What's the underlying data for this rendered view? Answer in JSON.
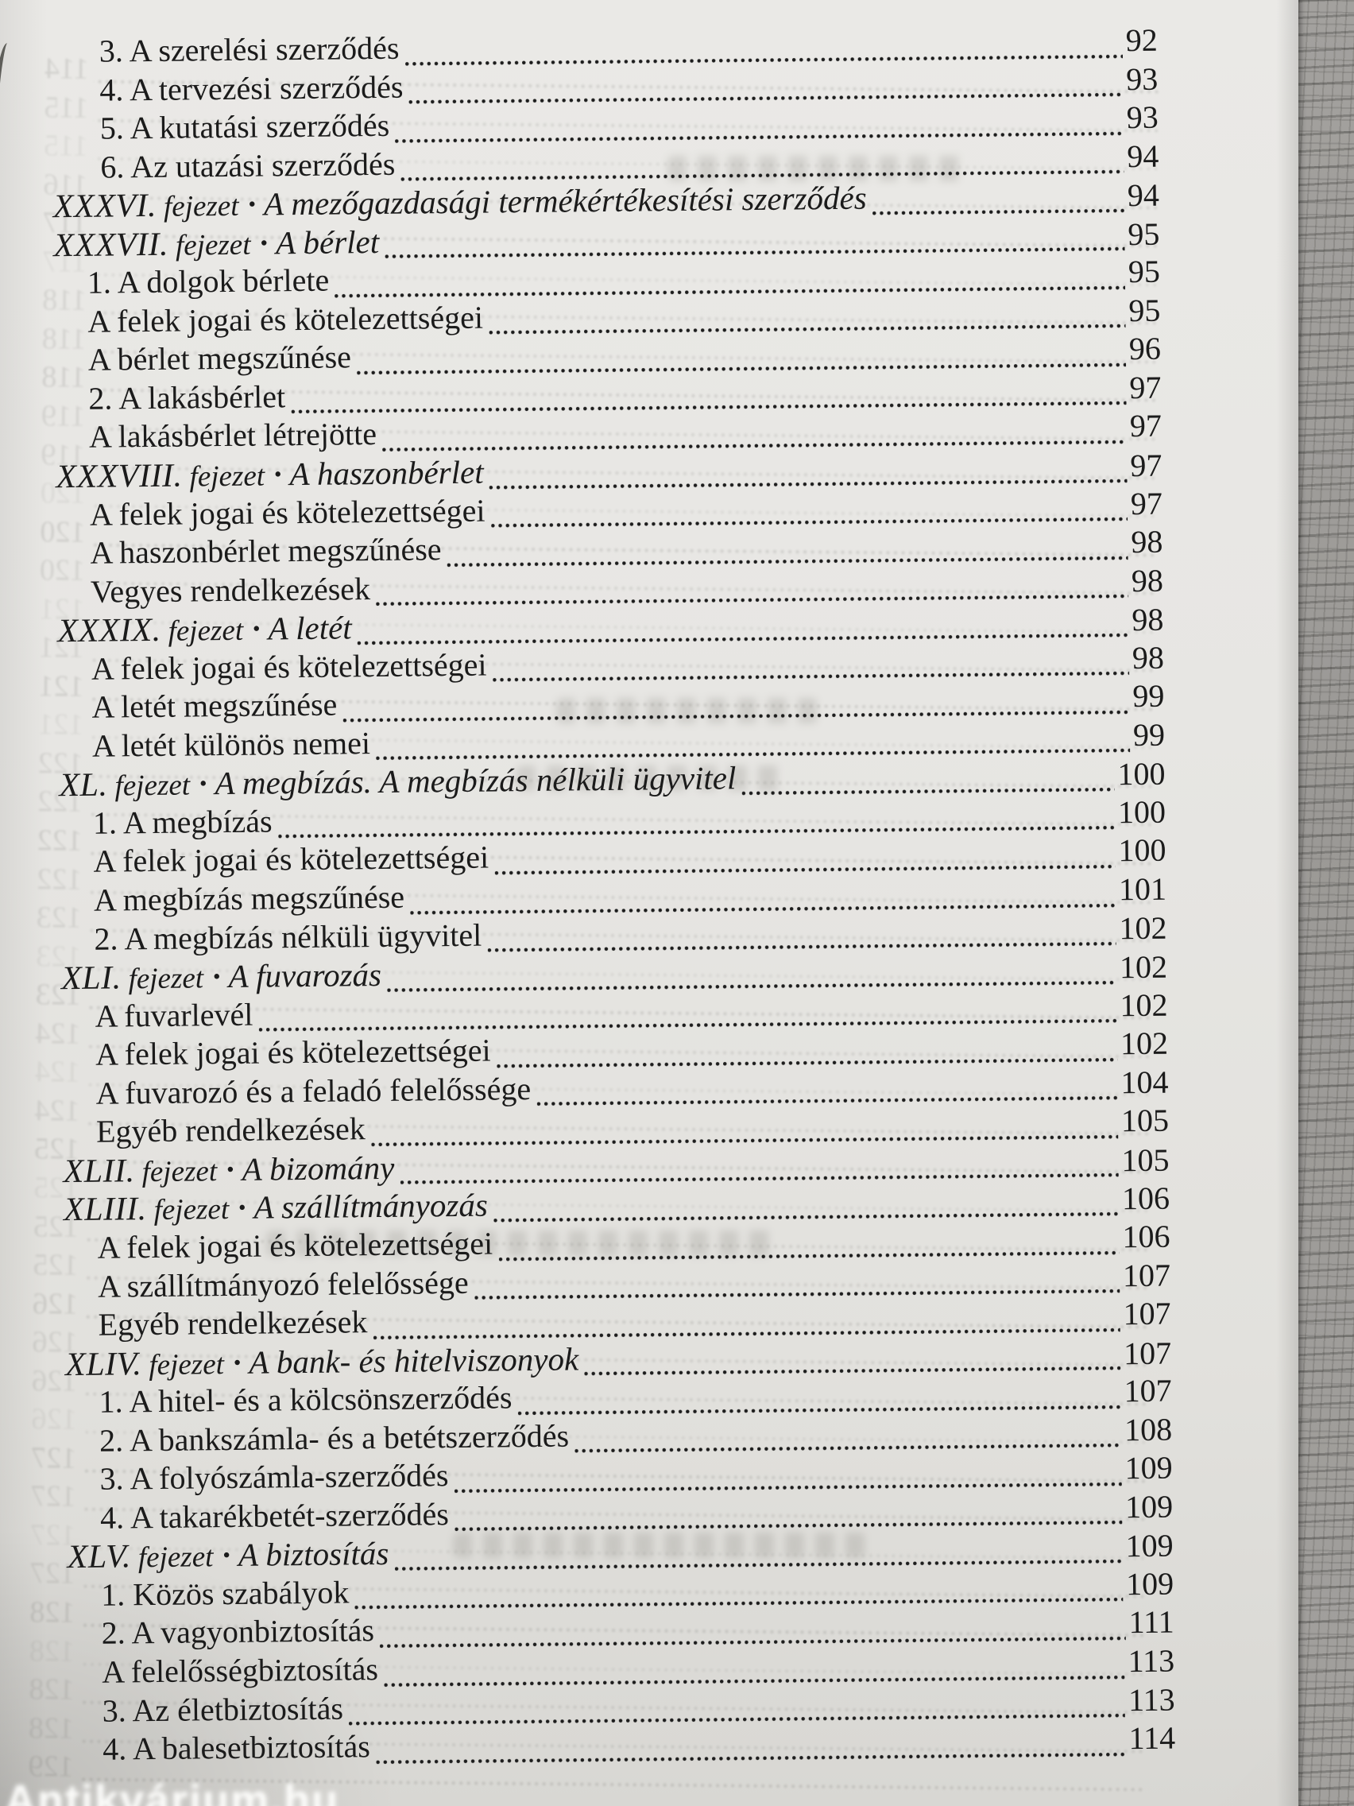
{
  "page": {
    "kind": "scanned book table of contents (Hungarian law book)",
    "watermark": "Antikvárium.hu"
  },
  "toc": {
    "chapter_word": "fejezet",
    "bullet": "•",
    "rows": [
      {
        "level": "point",
        "text": "3. A szerelési szerződés",
        "page": "92"
      },
      {
        "level": "point",
        "text": "4. A tervezési szerződés",
        "page": "93"
      },
      {
        "level": "point",
        "text": "5. A kutatási szerződés",
        "page": "93"
      },
      {
        "level": "point",
        "text": "6. Az utazási szerződés",
        "page": "94"
      },
      {
        "level": "chapter",
        "roman": "XXXVI.",
        "title": "A mezőgazdasági termékértékesítési szerződés",
        "page": "94"
      },
      {
        "level": "chapter",
        "roman": "XXXVII.",
        "title": "A bérlet",
        "page": "95"
      },
      {
        "level": "item",
        "text": "1. A dolgok bérlete",
        "page": "95"
      },
      {
        "level": "item",
        "text": "A felek jogai és kötelezettségei",
        "page": "95"
      },
      {
        "level": "item",
        "text": "A bérlet megszűnése",
        "page": "96"
      },
      {
        "level": "item",
        "text": "2. A lakásbérlet",
        "page": "97"
      },
      {
        "level": "item",
        "text": "A lakásbérlet létrejötte",
        "page": "97"
      },
      {
        "level": "chapter",
        "roman": "XXXVIII.",
        "title": "A haszonbérlet",
        "page": "97"
      },
      {
        "level": "item",
        "text": "A felek jogai és kötelezettségei",
        "page": "97"
      },
      {
        "level": "item",
        "text": "A haszonbérlet megszűnése",
        "page": "98"
      },
      {
        "level": "item",
        "text": "Vegyes rendelkezések",
        "page": "98"
      },
      {
        "level": "chapter",
        "roman": "XXXIX.",
        "title": "A letét",
        "page": "98"
      },
      {
        "level": "item",
        "text": "A felek jogai és kötelezettségei",
        "page": "98"
      },
      {
        "level": "item",
        "text": "A letét megszűnése",
        "page": "99"
      },
      {
        "level": "item",
        "text": "A letét különös nemei",
        "page": "99"
      },
      {
        "level": "chapter",
        "roman": "XL.",
        "title": "A megbízás. A megbízás nélküli ügyvitel",
        "page": "100"
      },
      {
        "level": "item",
        "text": "1. A megbízás",
        "page": "100"
      },
      {
        "level": "item",
        "text": "A felek jogai és kötelezettségei",
        "page": "100"
      },
      {
        "level": "item",
        "text": "A megbízás megszűnése",
        "page": "101"
      },
      {
        "level": "item",
        "text": "2. A megbízás nélküli ügyvitel",
        "page": "102"
      },
      {
        "level": "chapter",
        "roman": "XLI.",
        "title": "A fuvarozás",
        "page": "102"
      },
      {
        "level": "item",
        "text": "A fuvarlevél",
        "page": "102"
      },
      {
        "level": "item",
        "text": "A felek jogai és kötelezettségei",
        "page": "102"
      },
      {
        "level": "item",
        "text": "A fuvarozó és a feladó felelőssége",
        "page": "104"
      },
      {
        "level": "item",
        "text": "Egyéb rendelkezések",
        "page": "105"
      },
      {
        "level": "chapter",
        "roman": "XLII.",
        "title": "A bizomány",
        "page": "105"
      },
      {
        "level": "chapter",
        "roman": "XLIII.",
        "title": "A szállítmányozás",
        "page": "106"
      },
      {
        "level": "item",
        "text": "A felek jogai és kötelezettségei",
        "page": "106"
      },
      {
        "level": "item",
        "text": "A szállítmányozó felelőssége",
        "page": "107"
      },
      {
        "level": "item",
        "text": "Egyéb rendelkezések",
        "page": "107"
      },
      {
        "level": "chapter",
        "roman": "XLIV.",
        "title": "A bank- és hitelviszonyok",
        "page": "107"
      },
      {
        "level": "item",
        "text": "1. A hitel- és a kölcsönszerződés",
        "page": "107"
      },
      {
        "level": "item",
        "text": "2. A bankszámla- és a betétszerződés",
        "page": "108"
      },
      {
        "level": "item",
        "text": "3. A folyószámla-szerződés",
        "page": "109"
      },
      {
        "level": "item",
        "text": "4. A takarékbetét-szerződés",
        "page": "109"
      },
      {
        "level": "chapter",
        "roman": "XLV.",
        "title": "A biztosítás",
        "page": "109"
      },
      {
        "level": "item",
        "text": "1. Közös szabályok",
        "page": "109"
      },
      {
        "level": "item",
        "text": "2. A vagyonbiztosítás",
        "page": "111"
      },
      {
        "level": "item",
        "text": "A felelősségbiztosítás",
        "page": "113"
      },
      {
        "level": "item",
        "text": "3. Az életbiztosítás",
        "page": "113"
      },
      {
        "level": "item",
        "text": "4. A balesetbiztosítás",
        "page": "114"
      }
    ]
  },
  "bleed_through": {
    "numbers": [
      114,
      115,
      115,
      116,
      117,
      117,
      118,
      118,
      118,
      119,
      119,
      120,
      120,
      120,
      121,
      121,
      121,
      121,
      122,
      122,
      122,
      122,
      123,
      123,
      123,
      124,
      124,
      124,
      125,
      125,
      125,
      125,
      126,
      126,
      126,
      126,
      127,
      127,
      127,
      127,
      128,
      128,
      128,
      128,
      129
    ]
  },
  "colors": {
    "paper": "#e7e6e3",
    "ink": "#1b1b1b",
    "fore_edge": "#9b9996",
    "ghost": "#5e5e5a",
    "watermark": "#fdfdfb"
  }
}
